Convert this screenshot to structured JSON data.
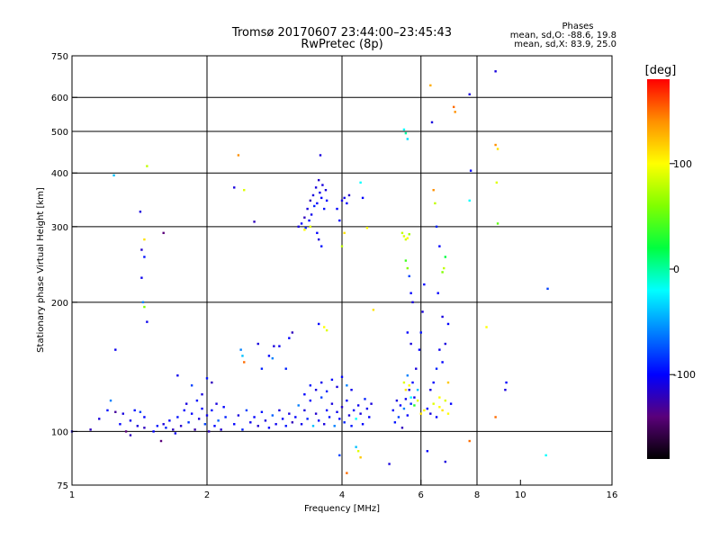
{
  "chart_data": {
    "type": "scatter",
    "title": "Tromsø 20170607 23:44:00–23:45:43",
    "subtitle": "RwPretec (8p)",
    "xlabel": "Frequency [MHz]",
    "ylabel": "Stationary phase Virtual Height [km]",
    "x_scale": "log",
    "y_scale": "log",
    "xlim": [
      1,
      16
    ],
    "ylim": [
      75,
      750
    ],
    "x_ticks": [
      "1",
      "2",
      "4",
      "6",
      "8",
      "10",
      "16"
    ],
    "x_tick_values": [
      1,
      2,
      4,
      6,
      8,
      10,
      16
    ],
    "x_gridlines": [
      2,
      4,
      6,
      8
    ],
    "y_ticks": [
      "75",
      "100",
      "200",
      "300",
      "400",
      "500",
      "600",
      "750"
    ],
    "y_tick_values": [
      75,
      100,
      200,
      300,
      400,
      500,
      600,
      750
    ],
    "y_gridlines": [
      100,
      200,
      300,
      400,
      500,
      600
    ],
    "stats": {
      "title": "Phases",
      "line1": "mean, sd,O: -88.6, 19.8",
      "line2": "mean, sd,X: 83.9, 25.0"
    },
    "colorbar": {
      "label": "[deg]",
      "range": [
        -180,
        180
      ],
      "ticks": [
        "100",
        "0",
        "-100"
      ],
      "tick_values": [
        100,
        0,
        -100
      ],
      "colormap": [
        "#000000",
        "#5a007a",
        "#0000ff",
        "#0080ff",
        "#00ffff",
        "#00ff40",
        "#80ff00",
        "#ffff00",
        "#ff9000",
        "#ff0000"
      ]
    },
    "points": [
      [
        1.0,
        100,
        -110
      ],
      [
        1.1,
        101,
        -120
      ],
      [
        1.15,
        107,
        -110
      ],
      [
        1.2,
        112,
        -95
      ],
      [
        1.22,
        118,
        -60
      ],
      [
        1.25,
        111,
        -130
      ],
      [
        1.28,
        104,
        -100
      ],
      [
        1.3,
        110,
        -110
      ],
      [
        1.32,
        100,
        -140
      ],
      [
        1.35,
        106,
        -105
      ],
      [
        1.35,
        98,
        -120
      ],
      [
        1.38,
        112,
        -95
      ],
      [
        1.4,
        103,
        -110
      ],
      [
        1.42,
        111,
        -80
      ],
      [
        1.45,
        102,
        -120
      ],
      [
        1.45,
        108,
        -100
      ],
      [
        1.24,
        395,
        -40
      ],
      [
        1.25,
        155,
        -105
      ],
      [
        1.42,
        325,
        -110
      ],
      [
        1.43,
        265,
        -115
      ],
      [
        1.43,
        228,
        -105
      ],
      [
        1.44,
        200,
        -60
      ],
      [
        1.45,
        195,
        60
      ],
      [
        1.47,
        180,
        -105
      ],
      [
        1.47,
        415,
        80
      ],
      [
        1.45,
        280,
        110
      ],
      [
        1.45,
        255,
        -95
      ],
      [
        1.6,
        290,
        -140
      ],
      [
        1.52,
        100,
        -100
      ],
      [
        1.55,
        103,
        -95
      ],
      [
        1.58,
        95,
        -140
      ],
      [
        1.6,
        104,
        -110
      ],
      [
        1.62,
        102,
        -90
      ],
      [
        1.65,
        106,
        -100
      ],
      [
        1.68,
        101,
        -120
      ],
      [
        1.7,
        99,
        -105
      ],
      [
        1.72,
        108,
        -95
      ],
      [
        1.75,
        103,
        -115
      ],
      [
        1.78,
        112,
        -100
      ],
      [
        1.8,
        116,
        -110
      ],
      [
        1.82,
        105,
        -85
      ],
      [
        1.85,
        110,
        -100
      ],
      [
        1.88,
        101,
        -125
      ],
      [
        1.9,
        118,
        -95
      ],
      [
        1.92,
        107,
        -110
      ],
      [
        1.95,
        113,
        -100
      ],
      [
        1.98,
        104,
        -80
      ],
      [
        2.0,
        109,
        -105
      ],
      [
        2.02,
        100,
        -120
      ],
      [
        2.05,
        112,
        -95
      ],
      [
        2.08,
        103,
        -100
      ],
      [
        2.1,
        116,
        -110
      ],
      [
        2.12,
        106,
        -70
      ],
      [
        2.15,
        101,
        -115
      ],
      [
        2.18,
        114,
        -100
      ],
      [
        2.2,
        108,
        -90
      ],
      [
        1.72,
        135,
        -105
      ],
      [
        1.85,
        128,
        -80
      ],
      [
        1.95,
        122,
        -110
      ],
      [
        2.0,
        133,
        -95
      ],
      [
        2.05,
        130,
        -120
      ],
      [
        2.35,
        440,
        140
      ],
      [
        2.3,
        370,
        -110
      ],
      [
        2.42,
        365,
        90
      ],
      [
        2.38,
        155,
        -60
      ],
      [
        2.4,
        150,
        -40
      ],
      [
        2.42,
        145,
        150
      ],
      [
        2.55,
        308,
        -120
      ],
      [
        2.6,
        160,
        -110
      ],
      [
        2.65,
        140,
        -90
      ],
      [
        2.75,
        150,
        -100
      ],
      [
        2.8,
        148,
        -60
      ],
      [
        2.82,
        158,
        -110
      ],
      [
        2.9,
        158,
        -105
      ],
      [
        3.0,
        140,
        -90
      ],
      [
        3.05,
        165,
        -100
      ],
      [
        3.1,
        170,
        -120
      ],
      [
        2.3,
        104,
        -100
      ],
      [
        2.35,
        109,
        -110
      ],
      [
        2.4,
        101,
        -90
      ],
      [
        2.45,
        112,
        -80
      ],
      [
        2.5,
        105,
        -105
      ],
      [
        2.55,
        108,
        -100
      ],
      [
        2.6,
        103,
        -115
      ],
      [
        2.65,
        111,
        -95
      ],
      [
        2.7,
        106,
        -110
      ],
      [
        2.75,
        102,
        -100
      ],
      [
        2.8,
        109,
        -70
      ],
      [
        2.85,
        104,
        -105
      ],
      [
        2.9,
        112,
        -110
      ],
      [
        2.95,
        107,
        -100
      ],
      [
        3.0,
        103,
        -95
      ],
      [
        3.05,
        110,
        -110
      ],
      [
        3.1,
        105,
        -120
      ],
      [
        3.15,
        108,
        -100
      ],
      [
        3.2,
        115,
        -60
      ],
      [
        3.25,
        104,
        -105
      ],
      [
        3.3,
        112,
        -110
      ],
      [
        3.35,
        107,
        -90
      ],
      [
        3.4,
        118,
        -100
      ],
      [
        3.45,
        103,
        -40
      ],
      [
        3.5,
        110,
        -115
      ],
      [
        3.55,
        106,
        -100
      ],
      [
        3.6,
        120,
        -80
      ],
      [
        3.65,
        104,
        -110
      ],
      [
        3.7,
        112,
        -100
      ],
      [
        3.75,
        108,
        -95
      ],
      [
        3.8,
        116,
        -110
      ],
      [
        3.85,
        103,
        -60
      ],
      [
        3.9,
        111,
        -105
      ],
      [
        3.95,
        107,
        -100
      ],
      [
        4.0,
        114,
        -115
      ],
      [
        4.05,
        105,
        -90
      ],
      [
        4.1,
        118,
        -100
      ],
      [
        4.15,
        109,
        -110
      ],
      [
        4.2,
        103,
        -95
      ],
      [
        4.25,
        112,
        -100
      ],
      [
        4.3,
        107,
        -20
      ],
      [
        4.35,
        115,
        -105
      ],
      [
        4.4,
        110,
        -110
      ],
      [
        4.45,
        104,
        -100
      ],
      [
        4.5,
        119,
        -90
      ],
      [
        4.55,
        113,
        -105
      ],
      [
        4.6,
        108,
        -100
      ],
      [
        4.65,
        116,
        -110
      ],
      [
        3.3,
        122,
        -100
      ],
      [
        3.4,
        128,
        -95
      ],
      [
        3.5,
        125,
        -110
      ],
      [
        3.6,
        130,
        -105
      ],
      [
        3.7,
        124,
        -90
      ],
      [
        3.8,
        132,
        -100
      ],
      [
        3.9,
        127,
        -110
      ],
      [
        4.0,
        134,
        -100
      ],
      [
        4.1,
        128,
        -60
      ],
      [
        4.2,
        125,
        -105
      ],
      [
        3.2,
        300,
        -110
      ],
      [
        3.25,
        305,
        -100
      ],
      [
        3.3,
        315,
        -120
      ],
      [
        3.32,
        298,
        -90
      ],
      [
        3.35,
        330,
        -110
      ],
      [
        3.38,
        310,
        -100
      ],
      [
        3.4,
        345,
        -120
      ],
      [
        3.42,
        320,
        -105
      ],
      [
        3.45,
        355,
        -110
      ],
      [
        3.47,
        335,
        -90
      ],
      [
        3.5,
        370,
        -110
      ],
      [
        3.52,
        340,
        -100
      ],
      [
        3.55,
        385,
        -115
      ],
      [
        3.57,
        360,
        -105
      ],
      [
        3.6,
        350,
        -100
      ],
      [
        3.62,
        375,
        -110
      ],
      [
        3.65,
        330,
        -95
      ],
      [
        3.68,
        365,
        -110
      ],
      [
        3.7,
        345,
        -100
      ],
      [
        3.52,
        290,
        -100
      ],
      [
        3.55,
        280,
        -110
      ],
      [
        3.6,
        270,
        -95
      ],
      [
        3.58,
        440,
        -110
      ],
      [
        3.3,
        295,
        100
      ],
      [
        3.4,
        300,
        90
      ],
      [
        3.9,
        330,
        -100
      ],
      [
        4.0,
        345,
        -110
      ],
      [
        4.05,
        350,
        -105
      ],
      [
        4.1,
        340,
        -100
      ],
      [
        4.15,
        355,
        -115
      ],
      [
        3.95,
        310,
        -100
      ],
      [
        4.0,
        270,
        80
      ],
      [
        4.05,
        290,
        110
      ],
      [
        4.4,
        380,
        -20
      ],
      [
        4.45,
        350,
        -100
      ],
      [
        4.55,
        298,
        100
      ],
      [
        3.65,
        175,
        100
      ],
      [
        3.7,
        172,
        90
      ],
      [
        3.55,
        178,
        -100
      ],
      [
        4.7,
        192,
        110
      ],
      [
        3.95,
        88,
        -80
      ],
      [
        4.1,
        80,
        150
      ],
      [
        4.35,
        90,
        90
      ],
      [
        4.4,
        87,
        120
      ],
      [
        4.3,
        92,
        -40
      ],
      [
        5.1,
        84,
        -110
      ],
      [
        5.2,
        112,
        -100
      ],
      [
        5.25,
        105,
        -95
      ],
      [
        5.3,
        118,
        -110
      ],
      [
        5.35,
        108,
        -80
      ],
      [
        5.4,
        115,
        -100
      ],
      [
        5.45,
        102,
        -120
      ],
      [
        5.5,
        113,
        -60
      ],
      [
        5.55,
        119,
        -105
      ],
      [
        5.6,
        109,
        -100
      ],
      [
        5.65,
        125,
        -110
      ],
      [
        5.7,
        116,
        -90
      ],
      [
        5.75,
        130,
        -100
      ],
      [
        5.8,
        120,
        -105
      ],
      [
        5.85,
        140,
        -110
      ],
      [
        5.9,
        125,
        -40
      ],
      [
        5.95,
        155,
        -100
      ],
      [
        6.0,
        170,
        -95
      ],
      [
        6.05,
        190,
        -110
      ],
      [
        6.1,
        220,
        -100
      ],
      [
        5.5,
        505,
        -20
      ],
      [
        5.55,
        495,
        0
      ],
      [
        5.6,
        480,
        -30
      ],
      [
        5.45,
        290,
        80
      ],
      [
        5.5,
        285,
        90
      ],
      [
        5.55,
        280,
        85
      ],
      [
        5.6,
        282,
        100
      ],
      [
        5.65,
        288,
        70
      ],
      [
        5.55,
        250,
        40
      ],
      [
        5.6,
        240,
        60
      ],
      [
        5.65,
        230,
        -80
      ],
      [
        5.7,
        210,
        -100
      ],
      [
        5.75,
        200,
        -110
      ],
      [
        5.6,
        170,
        -100
      ],
      [
        5.7,
        160,
        -110
      ],
      [
        5.5,
        130,
        90
      ],
      [
        5.55,
        125,
        110
      ],
      [
        5.6,
        135,
        -60
      ],
      [
        5.65,
        128,
        100
      ],
      [
        5.7,
        120,
        -20
      ],
      [
        5.8,
        115,
        30
      ],
      [
        5.9,
        118,
        90
      ],
      [
        6.0,
        110,
        110
      ],
      [
        6.1,
        112,
        100
      ],
      [
        6.2,
        113,
        -100
      ],
      [
        6.3,
        110,
        -110
      ],
      [
        6.4,
        116,
        90
      ],
      [
        6.5,
        108,
        -100
      ],
      [
        6.6,
        114,
        100
      ],
      [
        6.7,
        112,
        110
      ],
      [
        6.8,
        118,
        90
      ],
      [
        6.9,
        110,
        100
      ],
      [
        7.0,
        116,
        -100
      ],
      [
        6.3,
        125,
        -110
      ],
      [
        6.4,
        130,
        -100
      ],
      [
        6.5,
        140,
        -90
      ],
      [
        6.6,
        155,
        -105
      ],
      [
        6.7,
        145,
        -100
      ],
      [
        6.8,
        160,
        -110
      ],
      [
        6.9,
        130,
        120
      ],
      [
        6.6,
        120,
        100
      ],
      [
        6.3,
        640,
        130
      ],
      [
        6.35,
        525,
        -110
      ],
      [
        6.4,
        365,
        140
      ],
      [
        6.45,
        340,
        80
      ],
      [
        6.5,
        300,
        -90
      ],
      [
        6.6,
        270,
        -100
      ],
      [
        6.8,
        255,
        20
      ],
      [
        6.75,
        240,
        80
      ],
      [
        6.7,
        235,
        60
      ],
      [
        6.55,
        210,
        -100
      ],
      [
        6.7,
        185,
        -110
      ],
      [
        6.9,
        178,
        -100
      ],
      [
        7.1,
        570,
        150
      ],
      [
        7.15,
        555,
        140
      ],
      [
        7.7,
        610,
        -110
      ],
      [
        7.75,
        405,
        -100
      ],
      [
        7.7,
        345,
        -20
      ],
      [
        7.7,
        95,
        150
      ],
      [
        8.8,
        690,
        -110
      ],
      [
        8.8,
        465,
        140
      ],
      [
        8.9,
        455,
        110
      ],
      [
        8.85,
        380,
        90
      ],
      [
        8.9,
        305,
        50
      ],
      [
        9.3,
        130,
        -100
      ],
      [
        9.25,
        125,
        -110
      ],
      [
        8.4,
        175,
        100
      ],
      [
        8.8,
        108,
        150
      ],
      [
        11.5,
        215,
        -80
      ],
      [
        11.4,
        88,
        -20
      ],
      [
        6.2,
        90,
        -100
      ],
      [
        6.8,
        85,
        -110
      ]
    ]
  }
}
